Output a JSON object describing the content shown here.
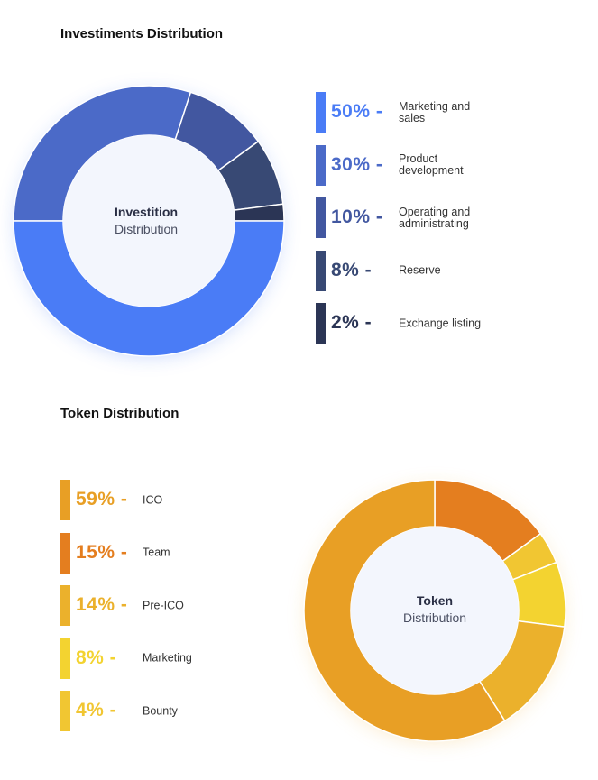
{
  "investments": {
    "title": "Investiments Distribution",
    "center_bold": "Investition",
    "center_light": "Distribution"
  },
  "token": {
    "title": "Token Distribution",
    "center_bold": "Token",
    "center_light": "Distribution"
  },
  "chart_data": [
    {
      "type": "pie",
      "title": "Investiments Distribution",
      "categories": [
        "Marketing and sales",
        "Product development",
        "Operating and administrating",
        "Reserve",
        "Exchange listing"
      ],
      "values": [
        50,
        30,
        10,
        8,
        2
      ],
      "value_labels": [
        "50% -",
        "30% -",
        "10% -",
        "8% -",
        "2% -"
      ],
      "colors": [
        "#4a7cf6",
        "#4b6ac8",
        "#4257a0",
        "#384974",
        "#2b3555"
      ],
      "start_angle_deg": 0,
      "direction": "clockwise-from-top-starting-with-last",
      "legend_position": "right"
    },
    {
      "type": "pie",
      "title": "Token Distribution",
      "categories": [
        "ICO",
        "Team",
        "Pre-ICO",
        "Marketing",
        "Bounty"
      ],
      "values": [
        59,
        15,
        14,
        8,
        4
      ],
      "value_labels": [
        "59% -",
        "15% -",
        "14% -",
        "8% -",
        "4% -"
      ],
      "colors": [
        "#e89f25",
        "#e47e1f",
        "#ebb12c",
        "#f3d330",
        "#f1c632"
      ],
      "legend_position": "left"
    }
  ]
}
